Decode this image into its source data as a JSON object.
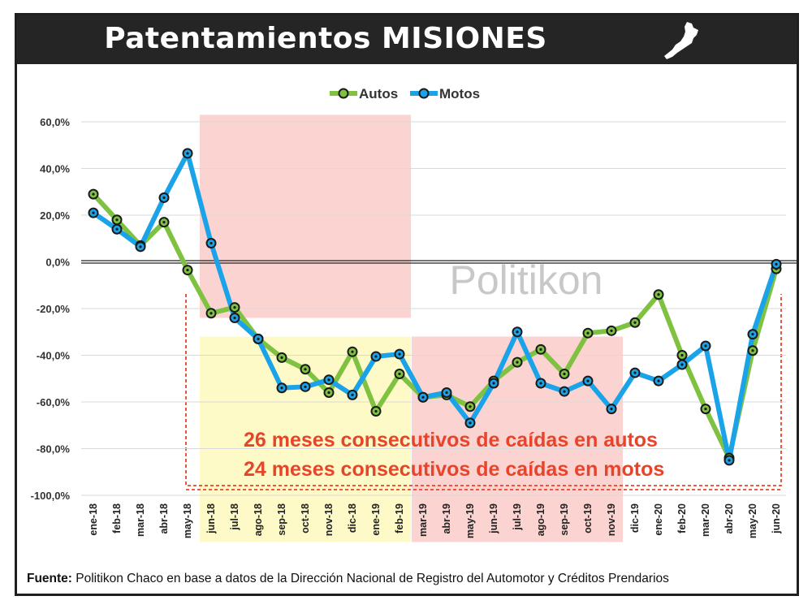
{
  "title": "Patentamientos MISIONES",
  "source": {
    "label": "Fuente:",
    "text": "Politikon Chaco en base a datos de la Dirección Nacional de Registro del Automotor y Créditos Prendarios"
  },
  "watermark": "Politikon",
  "annotations": [
    "26 meses consecutivos de caídas en autos",
    "24 meses consecutivos de caídas en motos"
  ],
  "colors": {
    "autos": "#7fc241",
    "motos": "#1aa3e8",
    "highlight_red": "#fbd3d0",
    "highlight_yellow": "#fdfac7",
    "annotation": "#e8442a"
  },
  "chart_data": {
    "type": "line",
    "categories": [
      "ene-18",
      "feb-18",
      "mar-18",
      "abr-18",
      "may-18",
      "jun-18",
      "jul-18",
      "ago-18",
      "sep-18",
      "oct-18",
      "nov-18",
      "dic-18",
      "ene-19",
      "feb-19",
      "mar-19",
      "abr-19",
      "may-19",
      "jun-19",
      "jul-19",
      "ago-19",
      "sep-19",
      "oct-19",
      "nov-19",
      "dic-19",
      "ene-20",
      "feb-20",
      "mar-20",
      "abr-20",
      "may-20",
      "jun-20"
    ],
    "series": [
      {
        "name": "Autos",
        "color": "#7fc241",
        "values": [
          29,
          18,
          7,
          17,
          -3.5,
          -22,
          -19.5,
          -33,
          -41,
          -46,
          -56,
          -38.5,
          -64,
          -48,
          -58,
          -57,
          -62,
          -51,
          -43,
          -37.5,
          -48,
          -30.5,
          -29.5,
          -26,
          -14,
          -40,
          -63,
          -84,
          -38,
          -3
        ]
      },
      {
        "name": "Motos",
        "color": "#1aa3e8",
        "values": [
          21,
          14,
          6.5,
          27.5,
          46.5,
          8,
          -24,
          -33,
          -54,
          -53.5,
          -50.5,
          -57,
          -40.5,
          -39.5,
          -58,
          -56,
          -69,
          -52,
          -30,
          -52,
          -55.5,
          -51,
          -63,
          -47.5,
          -51,
          -44,
          -36,
          -85,
          -31,
          -1
        ]
      }
    ],
    "y_ticks": [
      "60,0%",
      "40,0%",
      "20,0%",
      "0,0%",
      "-20,0%",
      "-40,0%",
      "-60,0%",
      "-80,0%",
      "-100,0%"
    ],
    "ylim": [
      -100,
      60
    ],
    "grid": true,
    "legend": "top-center",
    "highlights": [
      {
        "from": "jun-18",
        "to": "feb-19",
        "y_from": -24,
        "y_to": 63,
        "color": "red"
      },
      {
        "from": "jun-18",
        "to": "feb-19",
        "y_from": -120,
        "y_to": -32,
        "color": "yellow"
      },
      {
        "from": "mar-19",
        "to": "nov-19",
        "y_from": -120,
        "y_to": -32,
        "color": "red"
      }
    ]
  }
}
